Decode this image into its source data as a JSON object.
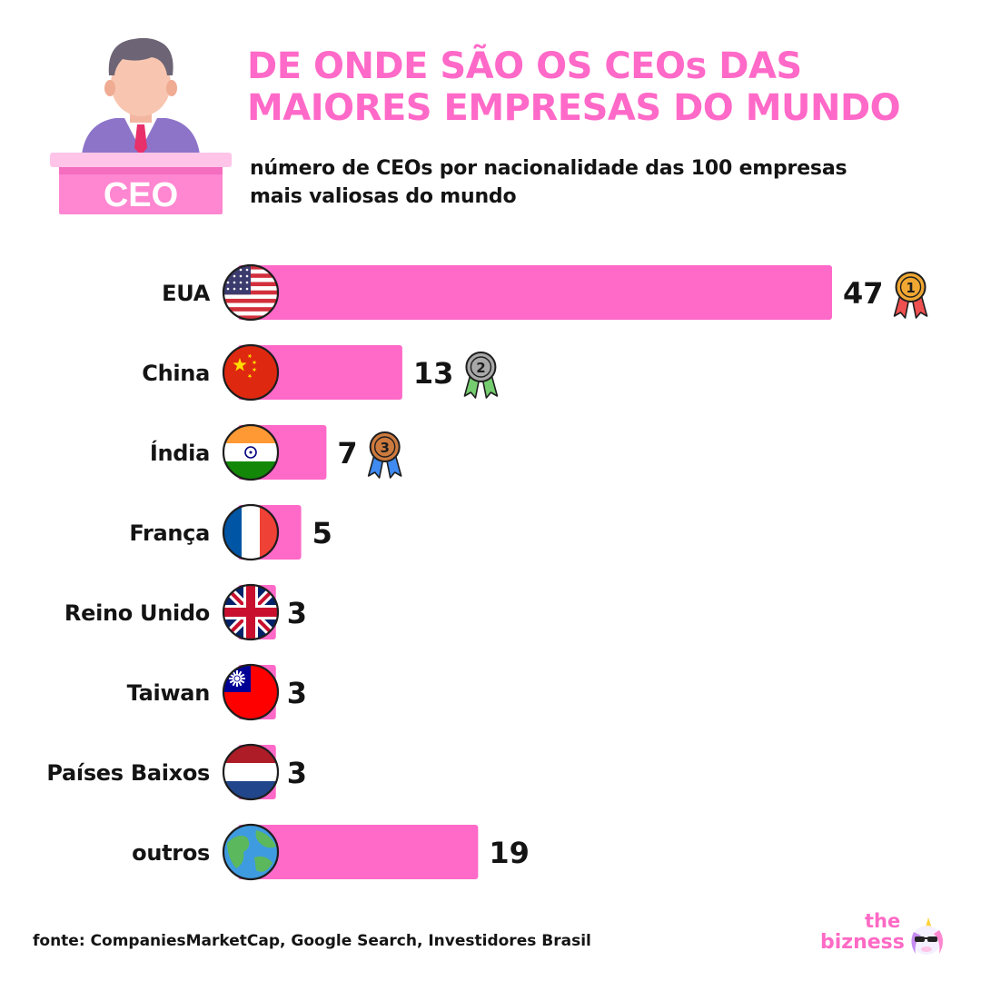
{
  "header": {
    "title_line1": "DE ONDE SÃO OS CEOs DAS",
    "title_line2": "MAIORES EMPRESAS DO MUNDO",
    "subtitle_line1": "número de CEOs por nacionalidade das 100 empresas",
    "subtitle_line2": "mais valiosas do mundo",
    "podium_text": "CEO"
  },
  "colors": {
    "accent": "#ff69c8",
    "bar": "#ff69c8",
    "text": "#141414",
    "podium_top": "#ffc4e8",
    "podium_body": "#ff86d0",
    "gold": "#f0a732",
    "silver": "#a8a8a8",
    "bronze": "#cd7a3e",
    "ribbon_red": "#ef5050",
    "ribbon_green": "#75cd6f",
    "ribbon_blue": "#3f8bf2"
  },
  "chart_data": {
    "type": "bar",
    "orientation": "horizontal",
    "categories": [
      "EUA",
      "China",
      "Índia",
      "França",
      "Reino Unido",
      "Taiwan",
      "Países Baixos",
      "outros"
    ],
    "values": [
      47,
      13,
      7,
      5,
      3,
      3,
      3,
      19
    ],
    "value_labels": [
      "47",
      "13",
      "7",
      "5",
      "3",
      "3",
      "3",
      "19"
    ],
    "flags": [
      "usa-flag-icon",
      "china-flag-icon",
      "india-flag-icon",
      "france-flag-icon",
      "uk-flag-icon",
      "taiwan-flag-icon",
      "netherlands-flag-icon",
      "globe-icon"
    ],
    "medals": [
      {
        "rank": "1",
        "color": "gold",
        "ribbon": "red"
      },
      {
        "rank": "2",
        "color": "silver",
        "ribbon": "green"
      },
      {
        "rank": "3",
        "color": "bronze",
        "ribbon": "blue"
      }
    ],
    "xlim": [
      0,
      47
    ],
    "title": "",
    "xlabel": "",
    "ylabel": "",
    "grid": false,
    "legend": "none"
  },
  "footer": {
    "source": "fonte: CompaniesMarketCap, Google Search, Investidores Brasil",
    "brand_the": "the",
    "brand_name": "bizness"
  }
}
